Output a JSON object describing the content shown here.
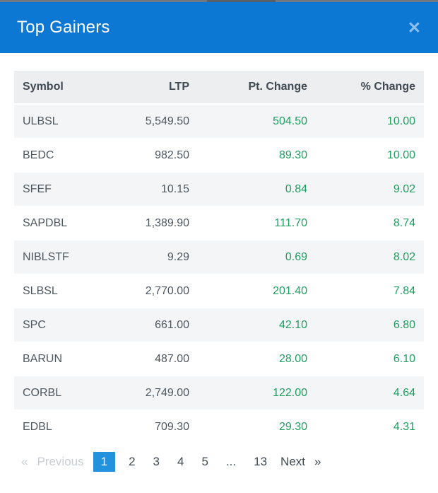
{
  "modal": {
    "title": "Top Gainers",
    "close_icon": "✕"
  },
  "table": {
    "columns": [
      "Symbol",
      "LTP",
      "Pt. Change",
      "% Change"
    ],
    "rows": [
      {
        "symbol": "ULBSL",
        "ltp": "5,549.50",
        "pt_change": "504.50",
        "pct_change": "10.00"
      },
      {
        "symbol": "BEDC",
        "ltp": "982.50",
        "pt_change": "89.30",
        "pct_change": "10.00"
      },
      {
        "symbol": "SFEF",
        "ltp": "10.15",
        "pt_change": "0.84",
        "pct_change": "9.02"
      },
      {
        "symbol": "SAPDBL",
        "ltp": "1,389.90",
        "pt_change": "111.70",
        "pct_change": "8.74"
      },
      {
        "symbol": "NIBLSTF",
        "ltp": "9.29",
        "pt_change": "0.69",
        "pct_change": "8.02"
      },
      {
        "symbol": "SLBSL",
        "ltp": "2,770.00",
        "pt_change": "201.40",
        "pct_change": "7.84"
      },
      {
        "symbol": "SPC",
        "ltp": "661.00",
        "pt_change": "42.10",
        "pct_change": "6.80"
      },
      {
        "symbol": "BARUN",
        "ltp": "487.00",
        "pt_change": "28.00",
        "pct_change": "6.10"
      },
      {
        "symbol": "CORBL",
        "ltp": "2,749.00",
        "pt_change": "122.00",
        "pct_change": "4.64"
      },
      {
        "symbol": "EDBL",
        "ltp": "709.30",
        "pt_change": "29.30",
        "pct_change": "4.31"
      }
    ]
  },
  "pagination": {
    "previous_icon": "«",
    "previous_label": "Previous",
    "pages": [
      "1",
      "2",
      "3",
      "4",
      "5",
      "...",
      "13"
    ],
    "active_page": "1",
    "ellipsis": "...",
    "next_label": "Next",
    "next_icon": "»"
  },
  "colors": {
    "header_blue": "#0c78d3",
    "active_page_blue": "#2392de",
    "gain_green": "#1e9e60",
    "table_header_bg": "#eceef0",
    "row_stripe_bg": "#f4f5f6",
    "disabled_text": "#c9ced3",
    "dark_text": "#414a52"
  }
}
